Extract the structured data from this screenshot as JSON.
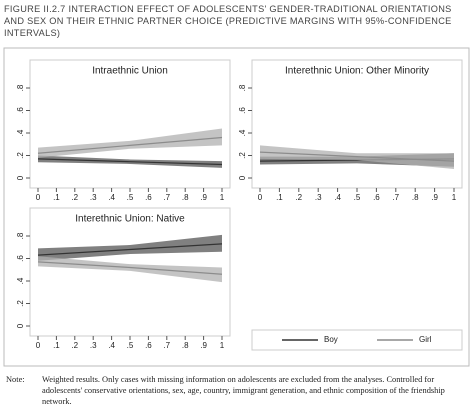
{
  "figure_title": "FIGURE II.2.7 INTERACTION EFFECT OF ADOLESCENTS' GENDER-TRADITIONAL ORIENTATIONS AND SEX ON THEIR ETHNIC PARTNER CHOICE (PREDICTIVE MARGINS WITH 95%-CONFIDENCE INTERVALS)",
  "note_label": "Note:",
  "note": "Weighted results. Only cases with missing information on adolescents are excluded from the analyses. Controlled for adolescents' conservative orientations, sex, age, country, immigrant generation, and ethnic composition of the friendship network.",
  "chart_data": [
    {
      "type": "line",
      "title": "Intraethnic Union",
      "x": [
        0,
        0.5,
        1
      ],
      "series": [
        {
          "name": "Boy",
          "color": "#333333",
          "band_color": "#555555",
          "values": [
            0.17,
            0.145,
            0.12
          ],
          "lower": [
            0.14,
            0.125,
            0.09
          ],
          "upper": [
            0.2,
            0.165,
            0.15
          ]
        },
        {
          "name": "Girl",
          "color": "#8c8c8c",
          "band_color": "#b0b0b0",
          "values": [
            0.22,
            0.29,
            0.36
          ],
          "lower": [
            0.18,
            0.26,
            0.29
          ],
          "upper": [
            0.27,
            0.33,
            0.44
          ]
        }
      ],
      "xlim": [
        0,
        1
      ],
      "ylim": [
        0,
        0.8
      ],
      "xticks": [
        0,
        {
          "value": 0.1,
          "label": ".1"
        },
        {
          "value": 0.2,
          "label": ".2"
        },
        {
          "value": 0.3,
          "label": ".3"
        },
        {
          "value": 0.4,
          "label": ".4"
        },
        {
          "value": 0.5,
          "label": ".5"
        },
        {
          "value": 0.6,
          "label": ".6"
        },
        {
          "value": 0.7,
          "label": ".7"
        },
        {
          "value": 0.8,
          "label": ".8"
        },
        {
          "value": 0.9,
          "label": ".9"
        },
        1
      ],
      "yticks": [
        0,
        {
          "value": 0.2,
          "label": ".2"
        },
        {
          "value": 0.4,
          "label": ".4"
        },
        {
          "value": 0.6,
          "label": ".6"
        },
        {
          "value": 0.8,
          "label": ".8"
        }
      ]
    },
    {
      "type": "line",
      "title": "Interethnic Union: Other Minority",
      "x": [
        0,
        0.5,
        1
      ],
      "series": [
        {
          "name": "Boy",
          "color": "#333333",
          "band_color": "#555555",
          "values": [
            0.15,
            0.16,
            0.17
          ],
          "lower": [
            0.12,
            0.13,
            0.1
          ],
          "upper": [
            0.19,
            0.19,
            0.22
          ]
        },
        {
          "name": "Girl",
          "color": "#8c8c8c",
          "band_color": "#b0b0b0",
          "values": [
            0.23,
            0.19,
            0.15
          ],
          "lower": [
            0.17,
            0.16,
            0.08
          ],
          "upper": [
            0.29,
            0.22,
            0.22
          ]
        }
      ],
      "xlim": [
        0,
        1
      ],
      "ylim": [
        0,
        0.8
      ],
      "xticks": [
        0,
        {
          "value": 0.1,
          "label": ".1"
        },
        {
          "value": 0.2,
          "label": ".2"
        },
        {
          "value": 0.3,
          "label": ".3"
        },
        {
          "value": 0.4,
          "label": ".4"
        },
        {
          "value": 0.5,
          "label": ".5"
        },
        {
          "value": 0.6,
          "label": ".6"
        },
        {
          "value": 0.7,
          "label": ".7"
        },
        {
          "value": 0.8,
          "label": ".8"
        },
        {
          "value": 0.9,
          "label": ".9"
        },
        1
      ],
      "yticks": [
        0,
        {
          "value": 0.2,
          "label": ".2"
        },
        {
          "value": 0.4,
          "label": ".4"
        },
        {
          "value": 0.6,
          "label": ".6"
        },
        {
          "value": 0.8,
          "label": ".8"
        }
      ]
    },
    {
      "type": "line",
      "title": "Interethnic Union: Native",
      "x": [
        0,
        0.5,
        1
      ],
      "series": [
        {
          "name": "Boy",
          "color": "#333333",
          "band_color": "#555555",
          "values": [
            0.63,
            0.68,
            0.73
          ],
          "lower": [
            0.58,
            0.64,
            0.66
          ],
          "upper": [
            0.69,
            0.72,
            0.81
          ]
        },
        {
          "name": "Girl",
          "color": "#8c8c8c",
          "band_color": "#b0b0b0",
          "values": [
            0.57,
            0.52,
            0.46
          ],
          "lower": [
            0.53,
            0.49,
            0.39
          ],
          "upper": [
            0.62,
            0.55,
            0.52
          ]
        }
      ],
      "xlim": [
        0,
        1
      ],
      "ylim": [
        0,
        0.8
      ],
      "xticks": [
        0,
        {
          "value": 0.1,
          "label": ".1"
        },
        {
          "value": 0.2,
          "label": ".2"
        },
        {
          "value": 0.3,
          "label": ".3"
        },
        {
          "value": 0.4,
          "label": ".4"
        },
        {
          "value": 0.5,
          "label": ".5"
        },
        {
          "value": 0.6,
          "label": ".6"
        },
        {
          "value": 0.7,
          "label": ".7"
        },
        {
          "value": 0.8,
          "label": ".8"
        },
        {
          "value": 0.9,
          "label": ".9"
        },
        1
      ],
      "yticks": [
        0,
        {
          "value": 0.2,
          "label": ".2"
        },
        {
          "value": 0.4,
          "label": ".4"
        },
        {
          "value": 0.6,
          "label": ".6"
        },
        {
          "value": 0.8,
          "label": ".8"
        }
      ]
    }
  ]
}
